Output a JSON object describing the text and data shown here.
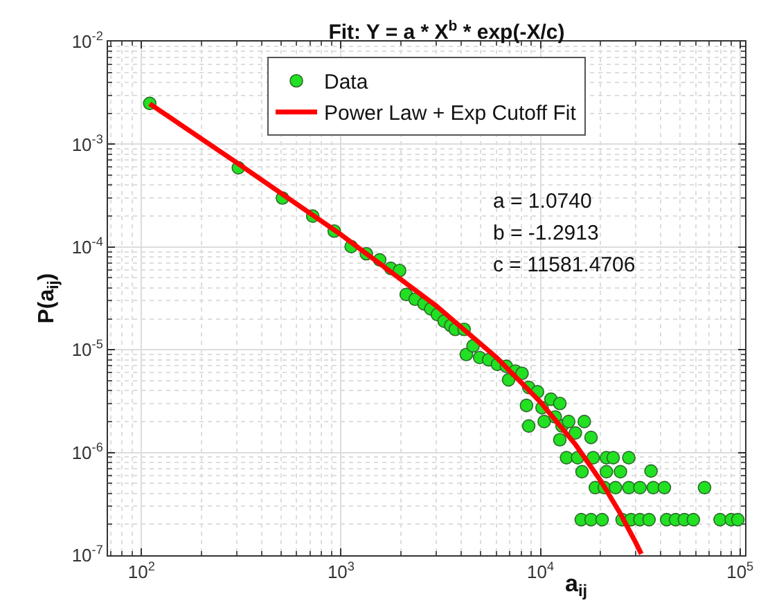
{
  "chart_data": {
    "type": "scatter",
    "title": "Fit: Y = a * X$^{b}$ * exp(-X/c)",
    "xlabel": "a$_{ij}$",
    "ylabel": "P(a$_{ij}$)",
    "log": "xy",
    "grid": true,
    "legend": "top",
    "xlim": [
      68,
      106000
    ],
    "ylim": [
      1e-07,
      0.01
    ],
    "xticks": [
      {
        "value": 100,
        "label": "10$^{2}$"
      },
      {
        "value": 1000,
        "label": "10$^{3}$"
      },
      {
        "value": 10000,
        "label": "10$^{4}$"
      },
      {
        "value": 100000,
        "label": "10$^{5}$"
      }
    ],
    "yticks": [
      {
        "value": 1e-07,
        "label": "10$^{-7}$"
      },
      {
        "value": 1e-06,
        "label": "10$^{-6}$"
      },
      {
        "value": 1e-05,
        "label": "10$^{-5}$"
      },
      {
        "value": 0.0001,
        "label": "10$^{-4}$"
      },
      {
        "value": 0.001,
        "label": "10$^{-3}$"
      },
      {
        "value": 0.01,
        "label": "10$^{-2}$"
      }
    ],
    "annotations": [
      "a = 1.0740",
      "b = -1.2913",
      "c = 11581.4706"
    ],
    "series": [
      {
        "name": "Data",
        "marker": "circle",
        "color": "#22e022",
        "x": [
          110,
          306,
          509,
          722,
          925,
          1125,
          1340,
          1563,
          1776,
          1967,
          2124,
          2354,
          2608,
          2818,
          3043,
          3289,
          3550,
          3739,
          4142,
          4250,
          4592,
          4955,
          5495,
          6085,
          6745,
          6920,
          7480,
          8080,
          8730,
          8510,
          8730,
          9660,
          10180,
          10440,
          11280,
          12500,
          11860,
          12820,
          13840,
          14960,
          16580,
          17920,
          12500,
          13500,
          15350,
          16150,
          18370,
          21400,
          23140,
          27700,
          21400,
          25150,
          35800,
          18830,
          20890,
          23770,
          27720,
          31500,
          36740,
          41780,
          66400,
          16000,
          17920,
          20370,
          25650,
          28440,
          31500,
          35000,
          42870,
          47540,
          52610,
          58340,
          79430,
          90360,
          97500
        ],
        "values": [
          0.0025,
          0.00059,
          0.0003,
          0.0002,
          0.000143,
          0.000101,
          8.6e-05,
          7.5e-05,
          6.2e-05,
          5.9e-05,
          3.45e-05,
          3.1e-05,
          2.8e-05,
          2.5e-05,
          2.2e-05,
          1.9e-05,
          1.72e-05,
          1.58e-05,
          1.58e-05,
          9e-06,
          1.09e-05,
          8.4e-06,
          8e-06,
          7.2e-06,
          6.9e-06,
          5.1e-06,
          6.2e-06,
          5.9e-06,
          4.3e-06,
          2.87e-06,
          1.81e-06,
          3.9e-06,
          2.73e-06,
          2e-06,
          3.3e-06,
          3e-06,
          2.22e-06,
          1.81e-06,
          2e-06,
          1.55e-06,
          2e-06,
          1.4e-06,
          1.33e-06,
          8.9e-07,
          8.9e-07,
          6.5e-07,
          8.9e-07,
          8.9e-07,
          8.9e-07,
          8.9e-07,
          6.5e-07,
          6.5e-07,
          6.6e-07,
          4.55e-07,
          4.55e-07,
          4.55e-07,
          4.55e-07,
          4.55e-07,
          4.55e-07,
          4.55e-07,
          4.55e-07,
          2.22e-07,
          2.22e-07,
          2.22e-07,
          2.22e-07,
          2.22e-07,
          2.22e-07,
          2.22e-07,
          2.22e-07,
          2.22e-07,
          2.22e-07,
          2.22e-07,
          2.22e-07,
          2.22e-07,
          2.22e-07
        ]
      },
      {
        "name": "Power Law + Exp Cutoff Fit",
        "type": "line",
        "marker": "none",
        "color": "#ff0000",
        "x": [
          110,
          300,
          1000,
          3000,
          6000,
          10000,
          15000,
          20000,
          25000,
          30000,
          32000
        ],
        "values": [
          0.00248,
          0.000663,
          0.000132,
          2.68e-05,
          8.45e-06,
          3.09e-06,
          1.19e-06,
          5.33e-07,
          2.59e-07,
          1.33e-07,
          1.03e-07
        ]
      }
    ]
  }
}
